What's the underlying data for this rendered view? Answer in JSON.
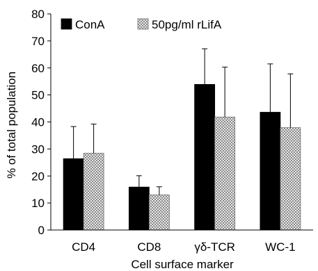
{
  "chart_data": {
    "type": "bar",
    "title": "",
    "xlabel": "Cell surface marker",
    "ylabel": "% of total population",
    "categories": [
      "CD4",
      "CD8",
      "γδ-TCR",
      "WC-1"
    ],
    "ylim": [
      0,
      80
    ],
    "yticks": [
      0,
      10,
      20,
      30,
      40,
      50,
      60,
      70,
      80
    ],
    "grid": false,
    "legend_position": "top-left",
    "series": [
      {
        "name": "ConA",
        "fill": "#000000",
        "pattern": "solid",
        "values": [
          26.4,
          15.9,
          53.9,
          43.6
        ],
        "error": [
          11.9,
          4.2,
          13.2,
          17.9
        ]
      },
      {
        "name": "50pg/ml rLifA",
        "fill": "#bdbdbd",
        "pattern": "checker",
        "values": [
          28.4,
          13.0,
          41.8,
          37.9
        ],
        "error": [
          10.8,
          3.0,
          18.5,
          19.9
        ]
      }
    ]
  }
}
